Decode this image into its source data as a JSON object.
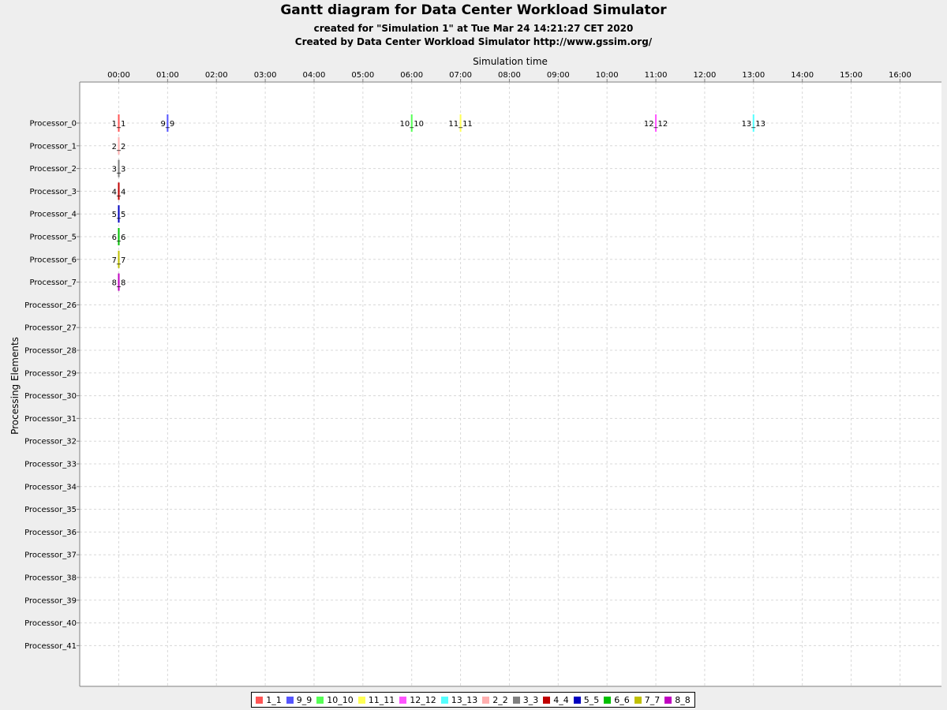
{
  "chart_data": {
    "type": "gantt",
    "title": "Gantt diagram for Data Center Workload Simulator",
    "subtitle": "created for \"Simulation 1\" at Tue Mar 24 14:21:27 CET 2020",
    "subtitle2": "Created by Data Center Workload Simulator http://www.gssim.org/",
    "xlabel": "Simulation time",
    "ylabel": "Processing Elements",
    "x_ticks": [
      "00:00",
      "01:00",
      "02:00",
      "03:00",
      "04:00",
      "05:00",
      "06:00",
      "07:00",
      "08:00",
      "09:00",
      "10:00",
      "11:00",
      "12:00",
      "13:00",
      "14:00",
      "15:00",
      "16:00"
    ],
    "x_range_hours": [
      -0.8,
      16.85
    ],
    "grid": true,
    "legend_position": "bottom",
    "categories": [
      "Processor_0",
      "Processor_1",
      "Processor_2",
      "Processor_3",
      "Processor_4",
      "Processor_5",
      "Processor_6",
      "Processor_7",
      "Processor_26",
      "Processor_27",
      "Processor_28",
      "Processor_29",
      "Processor_30",
      "Processor_31",
      "Processor_32",
      "Processor_33",
      "Processor_34",
      "Processor_35",
      "Processor_36",
      "Processor_37",
      "Processor_38",
      "Processor_39",
      "Processor_40",
      "Processor_41"
    ],
    "tasks": [
      {
        "name": "1_1",
        "processor": "Processor_0",
        "start_hour": 0,
        "color": "#ff5555"
      },
      {
        "name": "9_9",
        "processor": "Processor_0",
        "start_hour": 1,
        "color": "#5555ff"
      },
      {
        "name": "10_10",
        "processor": "Processor_0",
        "start_hour": 6,
        "color": "#55ff55"
      },
      {
        "name": "11_11",
        "processor": "Processor_0",
        "start_hour": 7,
        "color": "#ffff55"
      },
      {
        "name": "12_12",
        "processor": "Processor_0",
        "start_hour": 11,
        "color": "#ff55ff"
      },
      {
        "name": "13_13",
        "processor": "Processor_0",
        "start_hour": 13,
        "color": "#55ffff"
      },
      {
        "name": "2_2",
        "processor": "Processor_1",
        "start_hour": 0,
        "color": "#ffafaf"
      },
      {
        "name": "3_3",
        "processor": "Processor_2",
        "start_hour": 0,
        "color": "#808080"
      },
      {
        "name": "4_4",
        "processor": "Processor_3",
        "start_hour": 0,
        "color": "#c00000"
      },
      {
        "name": "5_5",
        "processor": "Processor_4",
        "start_hour": 0,
        "color": "#0000c0"
      },
      {
        "name": "6_6",
        "processor": "Processor_5",
        "start_hour": 0,
        "color": "#00c000"
      },
      {
        "name": "7_7",
        "processor": "Processor_6",
        "start_hour": 0,
        "color": "#c0c000"
      },
      {
        "name": "8_8",
        "processor": "Processor_7",
        "start_hour": 0,
        "color": "#c000c0"
      }
    ],
    "legend": [
      {
        "name": "1_1",
        "color": "#ff5555"
      },
      {
        "name": "9_9",
        "color": "#5555ff"
      },
      {
        "name": "10_10",
        "color": "#55ff55"
      },
      {
        "name": "11_11",
        "color": "#ffff55"
      },
      {
        "name": "12_12",
        "color": "#ff55ff"
      },
      {
        "name": "13_13",
        "color": "#55ffff"
      },
      {
        "name": "2_2",
        "color": "#ffafaf"
      },
      {
        "name": "3_3",
        "color": "#808080"
      },
      {
        "name": "4_4",
        "color": "#c00000"
      },
      {
        "name": "5_5",
        "color": "#0000c0"
      },
      {
        "name": "6_6",
        "color": "#00c000"
      },
      {
        "name": "7_7",
        "color": "#c0c000"
      },
      {
        "name": "8_8",
        "color": "#c000c0"
      }
    ]
  }
}
